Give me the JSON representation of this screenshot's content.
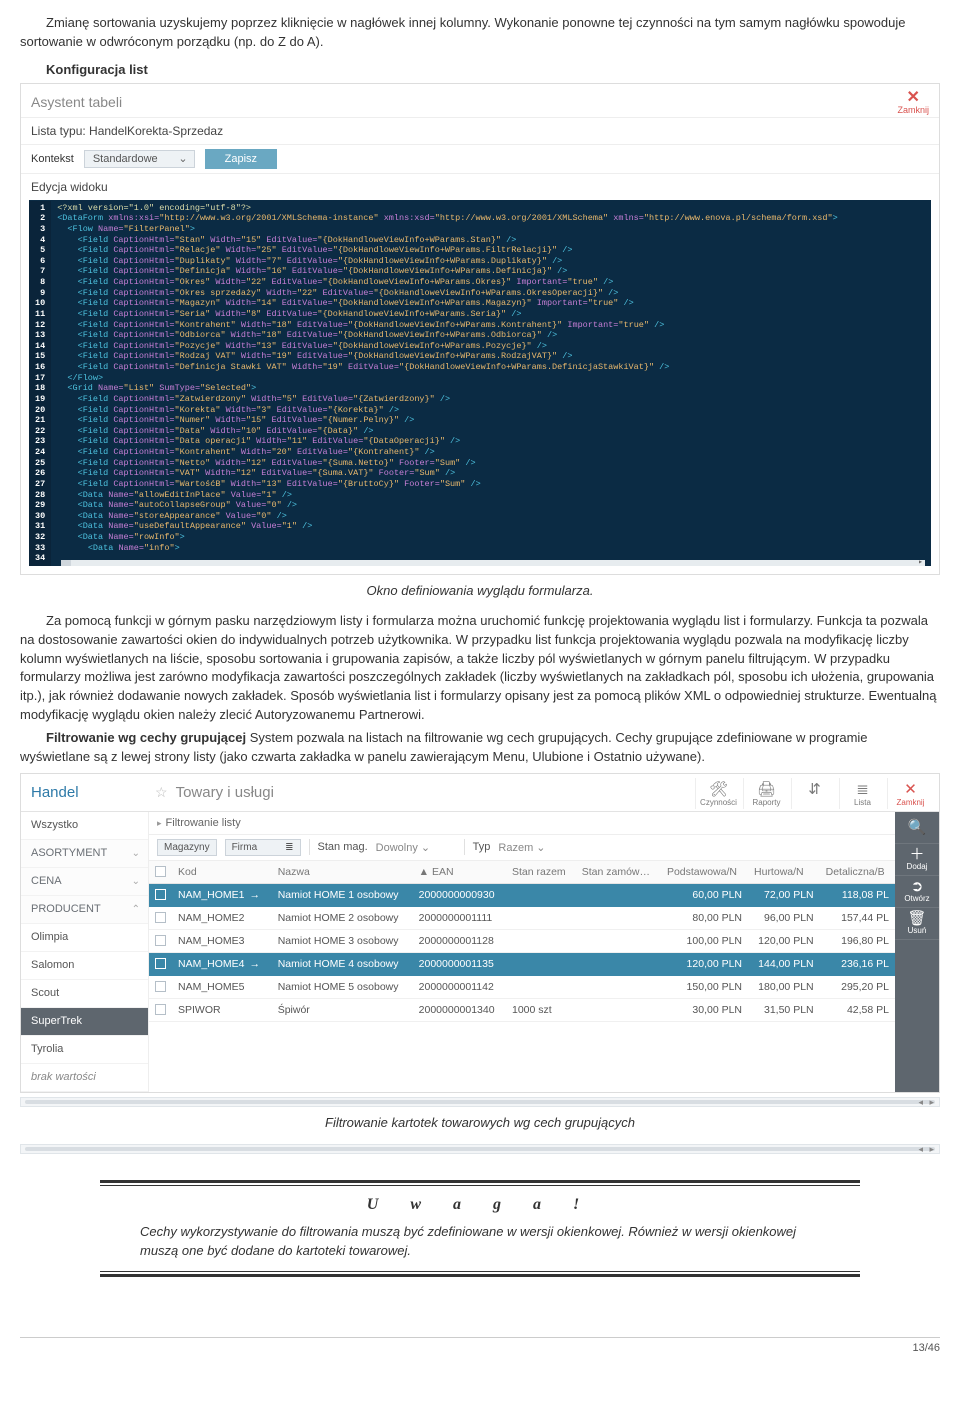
{
  "intro1": "Zmianę sortowania uzyskujemy poprzez kliknięcie w nagłówek innej kolumny. Wykonanie ponowne tej czynności na tym samym nagłówku spowoduje sortowanie w odwróconym porządku (np. do Z do A).",
  "h_konf": "Konfiguracja list",
  "panel1": {
    "title": "Asystent tabeli",
    "close": "Zamknij",
    "lista_typu": "Lista typu: HandelKorekta-Sprzedaz",
    "kontekst_label": "Kontekst",
    "kontekst_value": "Standardowe",
    "zapisz": "Zapisz",
    "edycja": "Edycja widoku",
    "gutter_max": 34
  },
  "caption1": "Okno definiowania wyglądu formularza.",
  "para2": "Za pomocą funkcji w górnym pasku narzędziowym listy i formularza można uruchomić funkcję projektowania wyglądu list i formularzy. Funkcja ta pozwala na dostosowanie zawartości okien do indywidualnych potrzeb użytkownika. W przypadku list funkcja projektowania wyglądu pozwala na modyfikację liczby kolumn wyświetlanych na liście, sposobu sortowania i grupowania zapisów, a także liczby pól wyświetlanych w górnym panelu filtrującym. W przypadku formularzy możliwa jest zarówno modyfikacja zawartości poszczególnych zakładek (liczby wyświetlanych na zakładkach pól, sposobu ich ułożenia, grupowania itp.), jak również dodawanie nowych zakładek. Sposób wyświetlania list i formularzy opisany jest za pomocą plików XML o odpowiedniej strukturze. Ewentualną modyfikację wyglądu okien należy zlecić Autoryzowanemu Partnerowi.",
  "para3_lead": "Filtrowanie wg cechy grupującej",
  "para3": " System pozwala na listach na filtrowanie wg cech grupujących. Cechy grupujące zdefiniowane w programie wyświetlane są z lewej strony listy (jako czwarta zakładka w panelu zawierającym Menu, Ulubione i Ostatnio używane).",
  "panel2": {
    "left_title": "Handel",
    "title": "Towary i usługi",
    "toolbar": [
      {
        "glyph": "🛠",
        "label": "Czynności"
      },
      {
        "glyph": "🖨",
        "label": "Raporty"
      },
      {
        "glyph": "⇵",
        "label": ""
      },
      {
        "glyph": "≣",
        "label": "Lista"
      },
      {
        "glyph": "✕",
        "label": "Zamknij",
        "red": true
      }
    ],
    "sidebar": [
      {
        "t": "Wszystko",
        "cls": ""
      },
      {
        "t": "ASORTYMENT",
        "cls": "hdr",
        "chev": "⌄"
      },
      {
        "t": "CENA",
        "cls": "hdr",
        "chev": "⌄"
      },
      {
        "t": "PRODUCENT",
        "cls": "hdr",
        "chev": "⌃"
      },
      {
        "t": "Olimpia",
        "cls": ""
      },
      {
        "t": "Salomon",
        "cls": ""
      },
      {
        "t": "Scout",
        "cls": ""
      },
      {
        "t": "SuperTrek",
        "cls": "sel"
      },
      {
        "t": "Tyrolia",
        "cls": ""
      },
      {
        "t": "brak wartości",
        "cls": "italic"
      }
    ],
    "filter_title": "Filtrowanie listy",
    "fbar": {
      "magazyny": "Magazyny",
      "firma": "Firma",
      "stan_mag": "Stan mag.",
      "dowolny": "Dowolny",
      "typ": "Typ",
      "razem": "Razem"
    },
    "cols": [
      "",
      "Kod",
      "Nazwa",
      "▲  EAN",
      "Stan razem",
      "Stan zamów…",
      "Podstawowa/N",
      "Hurtowa/N",
      "Detaliczna/B"
    ],
    "rows": [
      {
        "sel": true,
        "kod": "NAM_HOME1",
        "nazwa": "Namiot HOME 1 osobowy",
        "ean": "2000000000930",
        "stan": "",
        "zam": "",
        "p": "60,00 PLN",
        "h": "72,00 PLN",
        "d": "118,08 PL"
      },
      {
        "sel": false,
        "kod": "NAM_HOME2",
        "nazwa": "Namiot HOME 2 osobowy",
        "ean": "2000000001111",
        "stan": "",
        "zam": "",
        "p": "80,00 PLN",
        "h": "96,00 PLN",
        "d": "157,44 PL"
      },
      {
        "sel": false,
        "kod": "NAM_HOME3",
        "nazwa": "Namiot HOME 3 osobowy",
        "ean": "2000000001128",
        "stan": "",
        "zam": "",
        "p": "100,00 PLN",
        "h": "120,00 PLN",
        "d": "196,80 PL"
      },
      {
        "sel": true,
        "kod": "NAM_HOME4",
        "nazwa": "Namiot HOME 4 osobowy",
        "ean": "2000000001135",
        "stan": "",
        "zam": "",
        "p": "120,00 PLN",
        "h": "144,00 PLN",
        "d": "236,16 PL"
      },
      {
        "sel": false,
        "kod": "NAM_HOME5",
        "nazwa": "Namiot HOME 5 osobowy",
        "ean": "2000000001142",
        "stan": "",
        "zam": "",
        "p": "150,00 PLN",
        "h": "180,00 PLN",
        "d": "295,20 PL"
      },
      {
        "sel": false,
        "kod": "SPIWOR",
        "nazwa": "Śpiwór",
        "ean": "2000000001340",
        "stan": "1000 szt",
        "zam": "",
        "p": "30,00 PLN",
        "h": "31,50 PLN",
        "d": "42,58 PL"
      }
    ],
    "rail": [
      {
        "g": "🔍",
        "t": ""
      },
      {
        "g": "＋",
        "t": "Dodaj"
      },
      {
        "g": "➲",
        "t": "Otwórz"
      },
      {
        "g": "🗑",
        "t": "Usuń"
      }
    ]
  },
  "caption2": "Filtrowanie kartotek towarowych wg cech grupujących",
  "note": {
    "title": "U w a g a !",
    "body": "Cechy wykorzystywanie do filtrowania muszą być zdefiniowane w wersji okienkowej. Również w wersji okienkowej muszą one być dodane do kartoteki towarowej."
  },
  "footer": "13/46"
}
